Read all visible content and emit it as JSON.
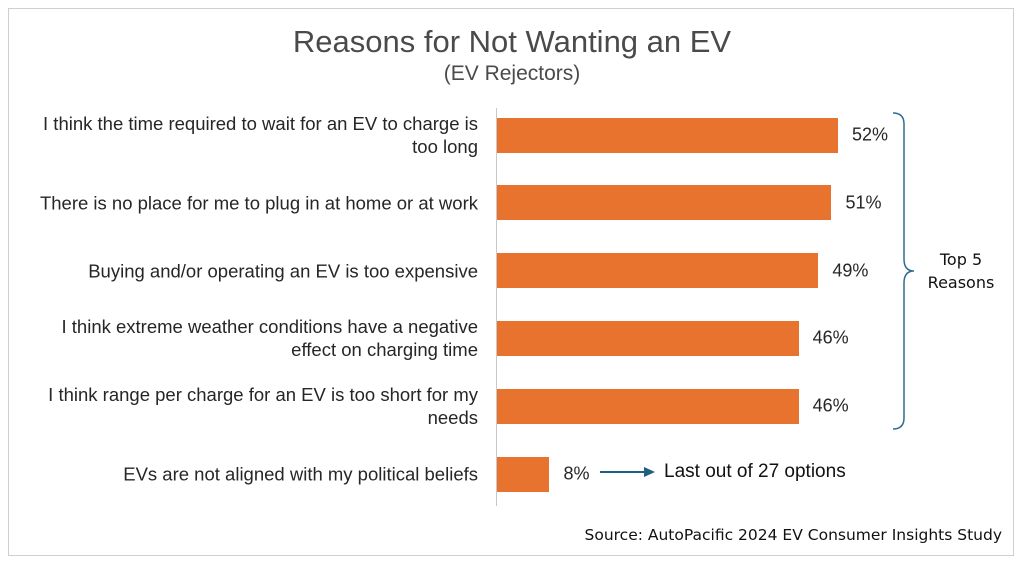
{
  "chart_data": {
    "type": "bar",
    "orientation": "horizontal",
    "title": "Reasons for Not Wanting an EV",
    "subtitle": "(EV Rejectors)",
    "categories": [
      "I think the time required to wait for an EV to charge is too long",
      "There is no place for me to plug in at home or at work",
      "Buying and/or operating an EV is too expensive",
      "I think extreme weather conditions have a negative effect on charging time",
      "I think range per charge for an EV is too short for my needs",
      "EVs are not aligned with my political beliefs"
    ],
    "values": [
      52,
      51,
      49,
      46,
      46,
      8
    ],
    "value_labels": [
      "52%",
      "51%",
      "49%",
      "46%",
      "46%",
      "8%"
    ],
    "xlim": [
      0,
      100
    ],
    "bar_color": "#E8732F",
    "annotations": {
      "bracket_label": "Top 5 Reasons",
      "arrow_note": "Last out of 27 options"
    },
    "source": "Source: AutoPacific 2024 EV Consumer Insights Study"
  }
}
